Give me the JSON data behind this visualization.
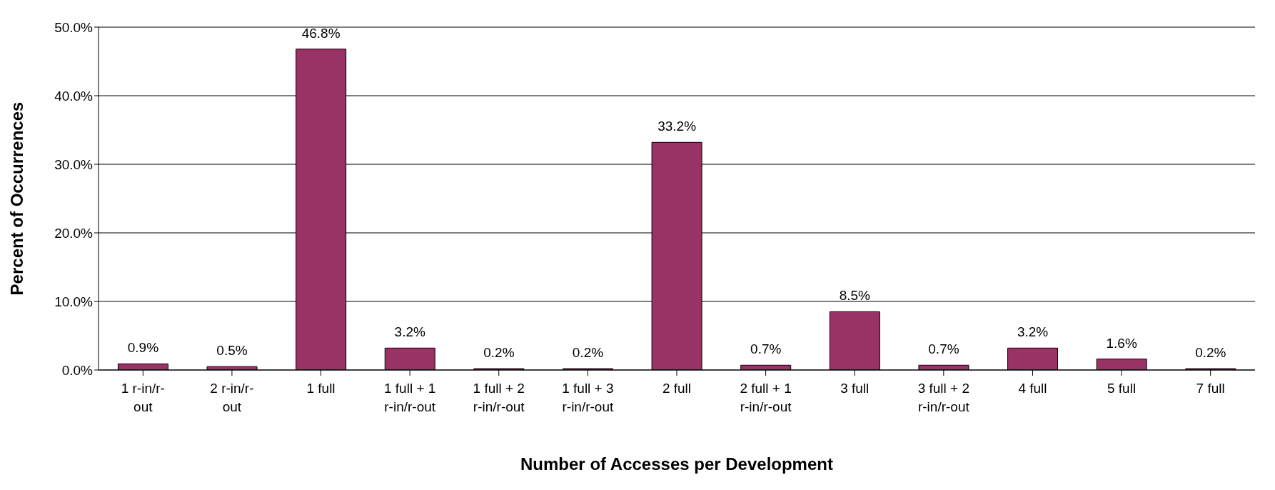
{
  "chart_data": {
    "type": "bar",
    "xlabel": "Number of Accesses per Development",
    "ylabel": "Percent of Occurrences",
    "categories": [
      "1 r-in/r-out",
      "2 r-in/r-out",
      "1 full",
      "1 full + 1 r-in/r-out",
      "1 full + 2 r-in/r-out",
      "1 full + 3 r-in/r-out",
      "2 full",
      "2 full + 1 r-in/r-out",
      "3 full",
      "3 full + 2 r-in/r-out",
      "4 full",
      "5 full",
      "7 full"
    ],
    "values": [
      0.9,
      0.5,
      46.8,
      3.2,
      0.2,
      0.2,
      33.2,
      0.7,
      8.5,
      0.7,
      3.2,
      1.6,
      0.2
    ],
    "value_labels": [
      "0.9%",
      "0.5%",
      "46.8%",
      "3.2%",
      "0.2%",
      "0.2%",
      "33.2%",
      "0.7%",
      "8.5%",
      "0.7%",
      "3.2%",
      "1.6%",
      "0.2%"
    ],
    "color": "#993366",
    "ylim": [
      0,
      50
    ],
    "yticks": [
      {
        "value": 0,
        "label": "0.0%"
      },
      {
        "value": 10,
        "label": "10.0%"
      },
      {
        "value": 20,
        "label": "20.0%"
      },
      {
        "value": 30,
        "label": "30.0%"
      },
      {
        "value": 40,
        "label": "40.0%"
      },
      {
        "value": 50,
        "label": "50.0%"
      }
    ],
    "grid": "y"
  }
}
